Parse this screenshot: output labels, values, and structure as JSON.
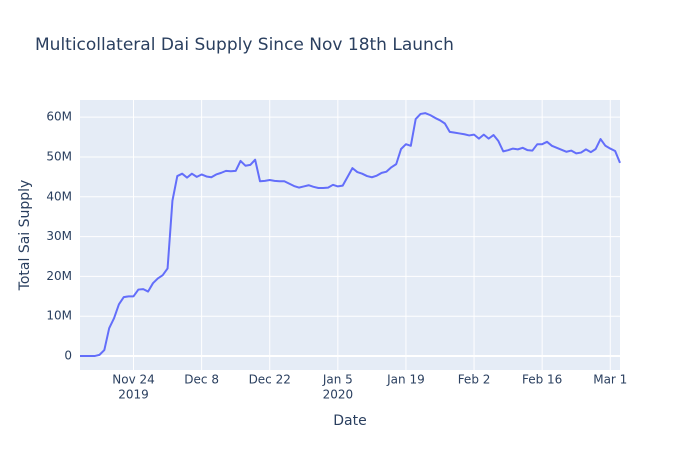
{
  "chart_data": {
    "type": "line",
    "title": "Multicollateral Dai Supply Since Nov 18th Launch",
    "x_label": "Date",
    "y_label": "Total Sai Supply",
    "x": [
      "2019-11-13",
      "2019-11-14",
      "2019-11-15",
      "2019-11-16",
      "2019-11-17",
      "2019-11-18",
      "2019-11-19",
      "2019-11-20",
      "2019-11-21",
      "2019-11-22",
      "2019-11-23",
      "2019-11-24",
      "2019-11-25",
      "2019-11-26",
      "2019-11-27",
      "2019-11-28",
      "2019-11-29",
      "2019-11-30",
      "2019-12-01",
      "2019-12-02",
      "2019-12-03",
      "2019-12-04",
      "2019-12-05",
      "2019-12-06",
      "2019-12-07",
      "2019-12-08",
      "2019-12-09",
      "2019-12-10",
      "2019-12-11",
      "2019-12-12",
      "2019-12-13",
      "2019-12-14",
      "2019-12-15",
      "2019-12-16",
      "2019-12-17",
      "2019-12-18",
      "2019-12-19",
      "2019-12-20",
      "2019-12-21",
      "2019-12-22",
      "2019-12-23",
      "2019-12-24",
      "2019-12-25",
      "2019-12-26",
      "2019-12-27",
      "2019-12-28",
      "2019-12-29",
      "2019-12-30",
      "2019-12-31",
      "2020-01-01",
      "2020-01-02",
      "2020-01-03",
      "2020-01-04",
      "2020-01-05",
      "2020-01-06",
      "2020-01-07",
      "2020-01-08",
      "2020-01-09",
      "2020-01-10",
      "2020-01-11",
      "2020-01-12",
      "2020-01-13",
      "2020-01-14",
      "2020-01-15",
      "2020-01-16",
      "2020-01-17",
      "2020-01-18",
      "2020-01-19",
      "2020-01-20",
      "2020-01-21",
      "2020-01-22",
      "2020-01-23",
      "2020-01-24",
      "2020-01-25",
      "2020-01-26",
      "2020-01-27",
      "2020-01-28",
      "2020-01-29",
      "2020-01-30",
      "2020-01-31",
      "2020-02-01",
      "2020-02-02",
      "2020-02-03",
      "2020-02-04",
      "2020-02-05",
      "2020-02-06",
      "2020-02-07",
      "2020-02-08",
      "2020-02-09",
      "2020-02-10",
      "2020-02-11",
      "2020-02-12",
      "2020-02-13",
      "2020-02-14",
      "2020-02-15",
      "2020-02-16",
      "2020-02-17",
      "2020-02-18",
      "2020-02-19",
      "2020-02-20",
      "2020-02-21",
      "2020-02-22",
      "2020-02-23",
      "2020-02-24",
      "2020-02-25",
      "2020-02-26",
      "2020-02-27",
      "2020-02-28",
      "2020-02-29",
      "2020-03-01",
      "2020-03-02",
      "2020-03-03"
    ],
    "series": [
      {
        "name": "Total Sai Supply",
        "color": "#636efa",
        "values": [
          0,
          0,
          0,
          0,
          300000,
          1500000,
          7000000,
          9500000,
          13000000,
          14800000,
          15000000,
          15000000,
          16700000,
          16800000,
          16200000,
          18300000,
          19500000,
          20300000,
          22000000,
          39000000,
          45200000,
          45800000,
          44800000,
          45800000,
          45000000,
          45600000,
          45100000,
          44900000,
          45600000,
          46000000,
          46500000,
          46400000,
          46500000,
          49000000,
          47800000,
          48000000,
          49300000,
          43900000,
          44000000,
          44200000,
          44000000,
          43900000,
          43900000,
          43300000,
          42700000,
          42300000,
          42600000,
          42900000,
          42500000,
          42200000,
          42200000,
          42300000,
          43000000,
          42600000,
          42800000,
          45000000,
          47200000,
          46200000,
          45800000,
          45200000,
          44900000,
          45300000,
          46000000,
          46300000,
          47400000,
          48200000,
          52000000,
          53200000,
          52800000,
          59500000,
          60800000,
          61000000,
          60500000,
          59800000,
          59200000,
          58400000,
          56300000,
          56100000,
          55900000,
          55700000,
          55400000,
          55600000,
          54600000,
          55600000,
          54600000,
          55500000,
          54000000,
          51400000,
          51700000,
          52100000,
          51900000,
          52300000,
          51700000,
          51600000,
          53200000,
          53200000,
          53800000,
          52800000,
          52300000,
          51800000,
          51300000,
          51600000,
          50900000,
          51100000,
          51900000,
          51200000,
          52000000,
          54500000,
          52800000,
          52100000,
          51500000,
          48500000
        ]
      }
    ],
    "xlim": [
      "2019-11-13",
      "2020-03-03"
    ],
    "xticks": [
      {
        "value": "2019-11-24",
        "label": "Nov 24",
        "sublabel": "2019"
      },
      {
        "value": "2019-12-08",
        "label": "Dec 8"
      },
      {
        "value": "2019-12-22",
        "label": "Dec 22"
      },
      {
        "value": "2020-01-05",
        "label": "Jan 5",
        "sublabel": "2020"
      },
      {
        "value": "2020-01-19",
        "label": "Jan 19"
      },
      {
        "value": "2020-02-02",
        "label": "Feb 2"
      },
      {
        "value": "2020-02-16",
        "label": "Feb 16"
      },
      {
        "value": "2020-03-01",
        "label": "Mar 1"
      }
    ],
    "ylim": [
      -3500000,
      64300000
    ],
    "yticks": [
      0,
      {
        "value": 10000000,
        "label": "10M"
      },
      {
        "value": 20000000,
        "label": "20M"
      },
      {
        "value": 30000000,
        "label": "30M"
      },
      {
        "value": 40000000,
        "label": "40M"
      },
      {
        "value": 50000000,
        "label": "50M"
      },
      {
        "value": 60000000,
        "label": "60M"
      }
    ],
    "grid": true,
    "background": "#e5ecf6"
  }
}
